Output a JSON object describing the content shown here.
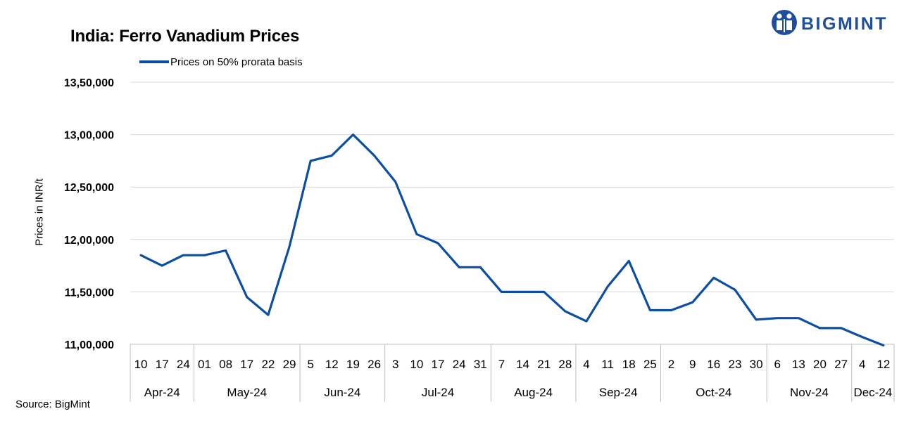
{
  "brand": {
    "name": "BIGMINT",
    "color": "#1f4e9c"
  },
  "source": "Source: BigMint",
  "chart_data": {
    "type": "line",
    "title": "India: Ferro Vanadium Prices",
    "ylabel": "Prices in INR/t",
    "xlabel": "",
    "ylim": [
      1100000,
      1350000
    ],
    "yticks": [
      {
        "value": 1100000,
        "label": "11,00,000"
      },
      {
        "value": 1150000,
        "label": "11,50,000"
      },
      {
        "value": 1200000,
        "label": "12,00,000"
      },
      {
        "value": 1250000,
        "label": "12,50,000"
      },
      {
        "value": 1300000,
        "label": "13,00,000"
      },
      {
        "value": 1350000,
        "label": "13,50,000"
      }
    ],
    "grid": true,
    "legend_position": "top-left",
    "series_color": "#0b4ea2",
    "x": [
      "10",
      "17",
      "24",
      "01",
      "08",
      "17",
      "22",
      "29",
      "5",
      "12",
      "19",
      "26",
      "3",
      "10",
      "17",
      "24",
      "31",
      "7",
      "14",
      "21",
      "28",
      "4",
      "11",
      "18",
      "25",
      "2",
      "9",
      "16",
      "23",
      "30",
      "6",
      "13",
      "20",
      "27",
      "4",
      "12"
    ],
    "months": [
      {
        "label": "Apr-24",
        "count": 3
      },
      {
        "label": "May-24",
        "count": 5
      },
      {
        "label": "Jun-24",
        "count": 4
      },
      {
        "label": "Jul-24",
        "count": 5
      },
      {
        "label": "Aug-24",
        "count": 4
      },
      {
        "label": "Sep-24",
        "count": 4
      },
      {
        "label": "Oct-24",
        "count": 5
      },
      {
        "label": "Nov-24",
        "count": 4
      },
      {
        "label": "Dec-24",
        "count": 2
      }
    ],
    "series": [
      {
        "name": "Prices on 50% prorata basis",
        "values": [
          1185000,
          1175000,
          1185000,
          1185000,
          1189500,
          1145000,
          1128000,
          1193000,
          1275000,
          1280000,
          1300000,
          1280000,
          1255000,
          1205000,
          1196500,
          1173500,
          1173500,
          1150000,
          1150000,
          1150000,
          1131500,
          1122000,
          1155000,
          1179500,
          1132500,
          1132500,
          1140000,
          1163500,
          1152000,
          1123500,
          1125000,
          1125000,
          1115500,
          1115500,
          1107000,
          1099000
        ]
      }
    ]
  }
}
